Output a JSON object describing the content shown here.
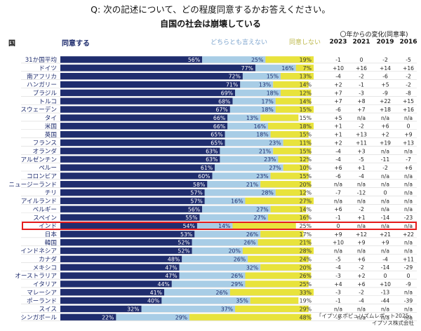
{
  "question": "Q: 次の記述について、どの程度同意するかお答えください。",
  "subtitle": "自国の社会は崩壊している",
  "headers": {
    "country": "国",
    "agree": "同意する",
    "neither": "どちらとも言えない",
    "disagree": "同意しない",
    "change": "〇年からの変化(同意率)",
    "years": [
      "2023",
      "2021",
      "2019",
      "2016"
    ]
  },
  "source": {
    "line1": "「イプソスポピュリズムレポート2025」",
    "line2": "イプソス株式会社"
  },
  "colors": {
    "agree": "#1f2d6e",
    "neither": "#a8cde6",
    "disagree": "#e8e33c",
    "highlight": "#e61e1e"
  },
  "chart_data": {
    "type": "bar",
    "orientation": "horizontal",
    "stacked": true,
    "xlim": [
      0,
      100
    ],
    "categories": [
      "31か国平均",
      "ドイツ",
      "南アフリカ",
      "ハンガリー",
      "ブラジル",
      "トルコ",
      "スウェーデン",
      "タイ",
      "米国",
      "英国",
      "フランス",
      "オランダ",
      "アルゼンチン",
      "ペルー",
      "コロンビア",
      "ニュージーランド",
      "チリ",
      "アイルランド",
      "ベルギー",
      "スペイン",
      "インド",
      "日本",
      "韓国",
      "インドネシア",
      "カナダ",
      "メキシコ",
      "オーストラリア",
      "イタリア",
      "マレーシア",
      "ポーランド",
      "スイス",
      "シンガポール"
    ],
    "series": [
      {
        "name": "同意する",
        "values": [
          56,
          77,
          72,
          71,
          69,
          68,
          67,
          66,
          66,
          65,
          65,
          63,
          63,
          61,
          60,
          58,
          57,
          57,
          56,
          55,
          54,
          53,
          52,
          52,
          48,
          47,
          47,
          44,
          41,
          40,
          32,
          22
        ]
      },
      {
        "name": "どちらとも言えない",
        "values": [
          25,
          16,
          15,
          13,
          18,
          17,
          18,
          13,
          16,
          18,
          23,
          21,
          23,
          27,
          23,
          21,
          28,
          16,
          27,
          27,
          14,
          26,
          26,
          20,
          26,
          32,
          26,
          29,
          26,
          35,
          37,
          29
        ]
      },
      {
        "name": "同意しない",
        "values": [
          19,
          7,
          13,
          14,
          12,
          14,
          15,
          15,
          18,
          15,
          11,
          15,
          12,
          10,
          15,
          20,
          12,
          27,
          14,
          16,
          25,
          17,
          21,
          28,
          24,
          20,
          26,
          25,
          33,
          19,
          29,
          48
        ]
      }
    ],
    "change_table": [
      [
        "-1",
        "0",
        "-2",
        "-5"
      ],
      [
        "+10",
        "+16",
        "+14",
        "+16"
      ],
      [
        "-4",
        "-2",
        "-6",
        "-2"
      ],
      [
        "+2",
        "-1",
        "+5",
        "-2"
      ],
      [
        "+7",
        "-3",
        "-9",
        "-8"
      ],
      [
        "+7",
        "+8",
        "+22",
        "+15"
      ],
      [
        "-6",
        "+7",
        "+18",
        "+16"
      ],
      [
        "+5",
        "n/a",
        "n/a",
        "n/a"
      ],
      [
        "+1",
        "-2",
        "+6",
        "0"
      ],
      [
        "+1",
        "+13",
        "+2",
        "+9"
      ],
      [
        "+2",
        "+11",
        "+19",
        "+13"
      ],
      [
        "-4",
        "+3",
        "n/a",
        "n/a"
      ],
      [
        "-4",
        "-5",
        "-11",
        "-7"
      ],
      [
        "+6",
        "+1",
        "-2",
        "+6"
      ],
      [
        "-6",
        "-4",
        "n/a",
        "n/a"
      ],
      [
        "n/a",
        "n/a",
        "n/a",
        "n/a"
      ],
      [
        "-7",
        "-12",
        "0",
        "n/a"
      ],
      [
        "n/a",
        "n/a",
        "n/a",
        "n/a"
      ],
      [
        "+6",
        "-2",
        "n/a",
        "n/a"
      ],
      [
        "-1",
        "+1",
        "-14",
        "-23"
      ],
      [
        "0",
        "n/a",
        "n/a",
        "n/a"
      ],
      [
        "+9",
        "+12",
        "+21",
        "+22"
      ],
      [
        "+10",
        "+9",
        "+9",
        "n/a"
      ],
      [
        "n/a",
        "n/a",
        "n/a",
        "n/a"
      ],
      [
        "-5",
        "+6",
        "-4",
        "+11"
      ],
      [
        "-4",
        "-2",
        "-14",
        "-29"
      ],
      [
        "-3",
        "+2",
        "0",
        "0"
      ],
      [
        "+4",
        "+6",
        "+10",
        "-9"
      ],
      [
        "-3",
        "-2",
        "-13",
        "n/a"
      ],
      [
        "-1",
        "-4",
        "-44",
        "-39"
      ],
      [
        "n/a",
        "n/a",
        "n/a",
        "n/a"
      ],
      [
        "-5",
        "n/a",
        "n/a",
        "n/a"
      ]
    ],
    "highlight_category": "日本"
  }
}
